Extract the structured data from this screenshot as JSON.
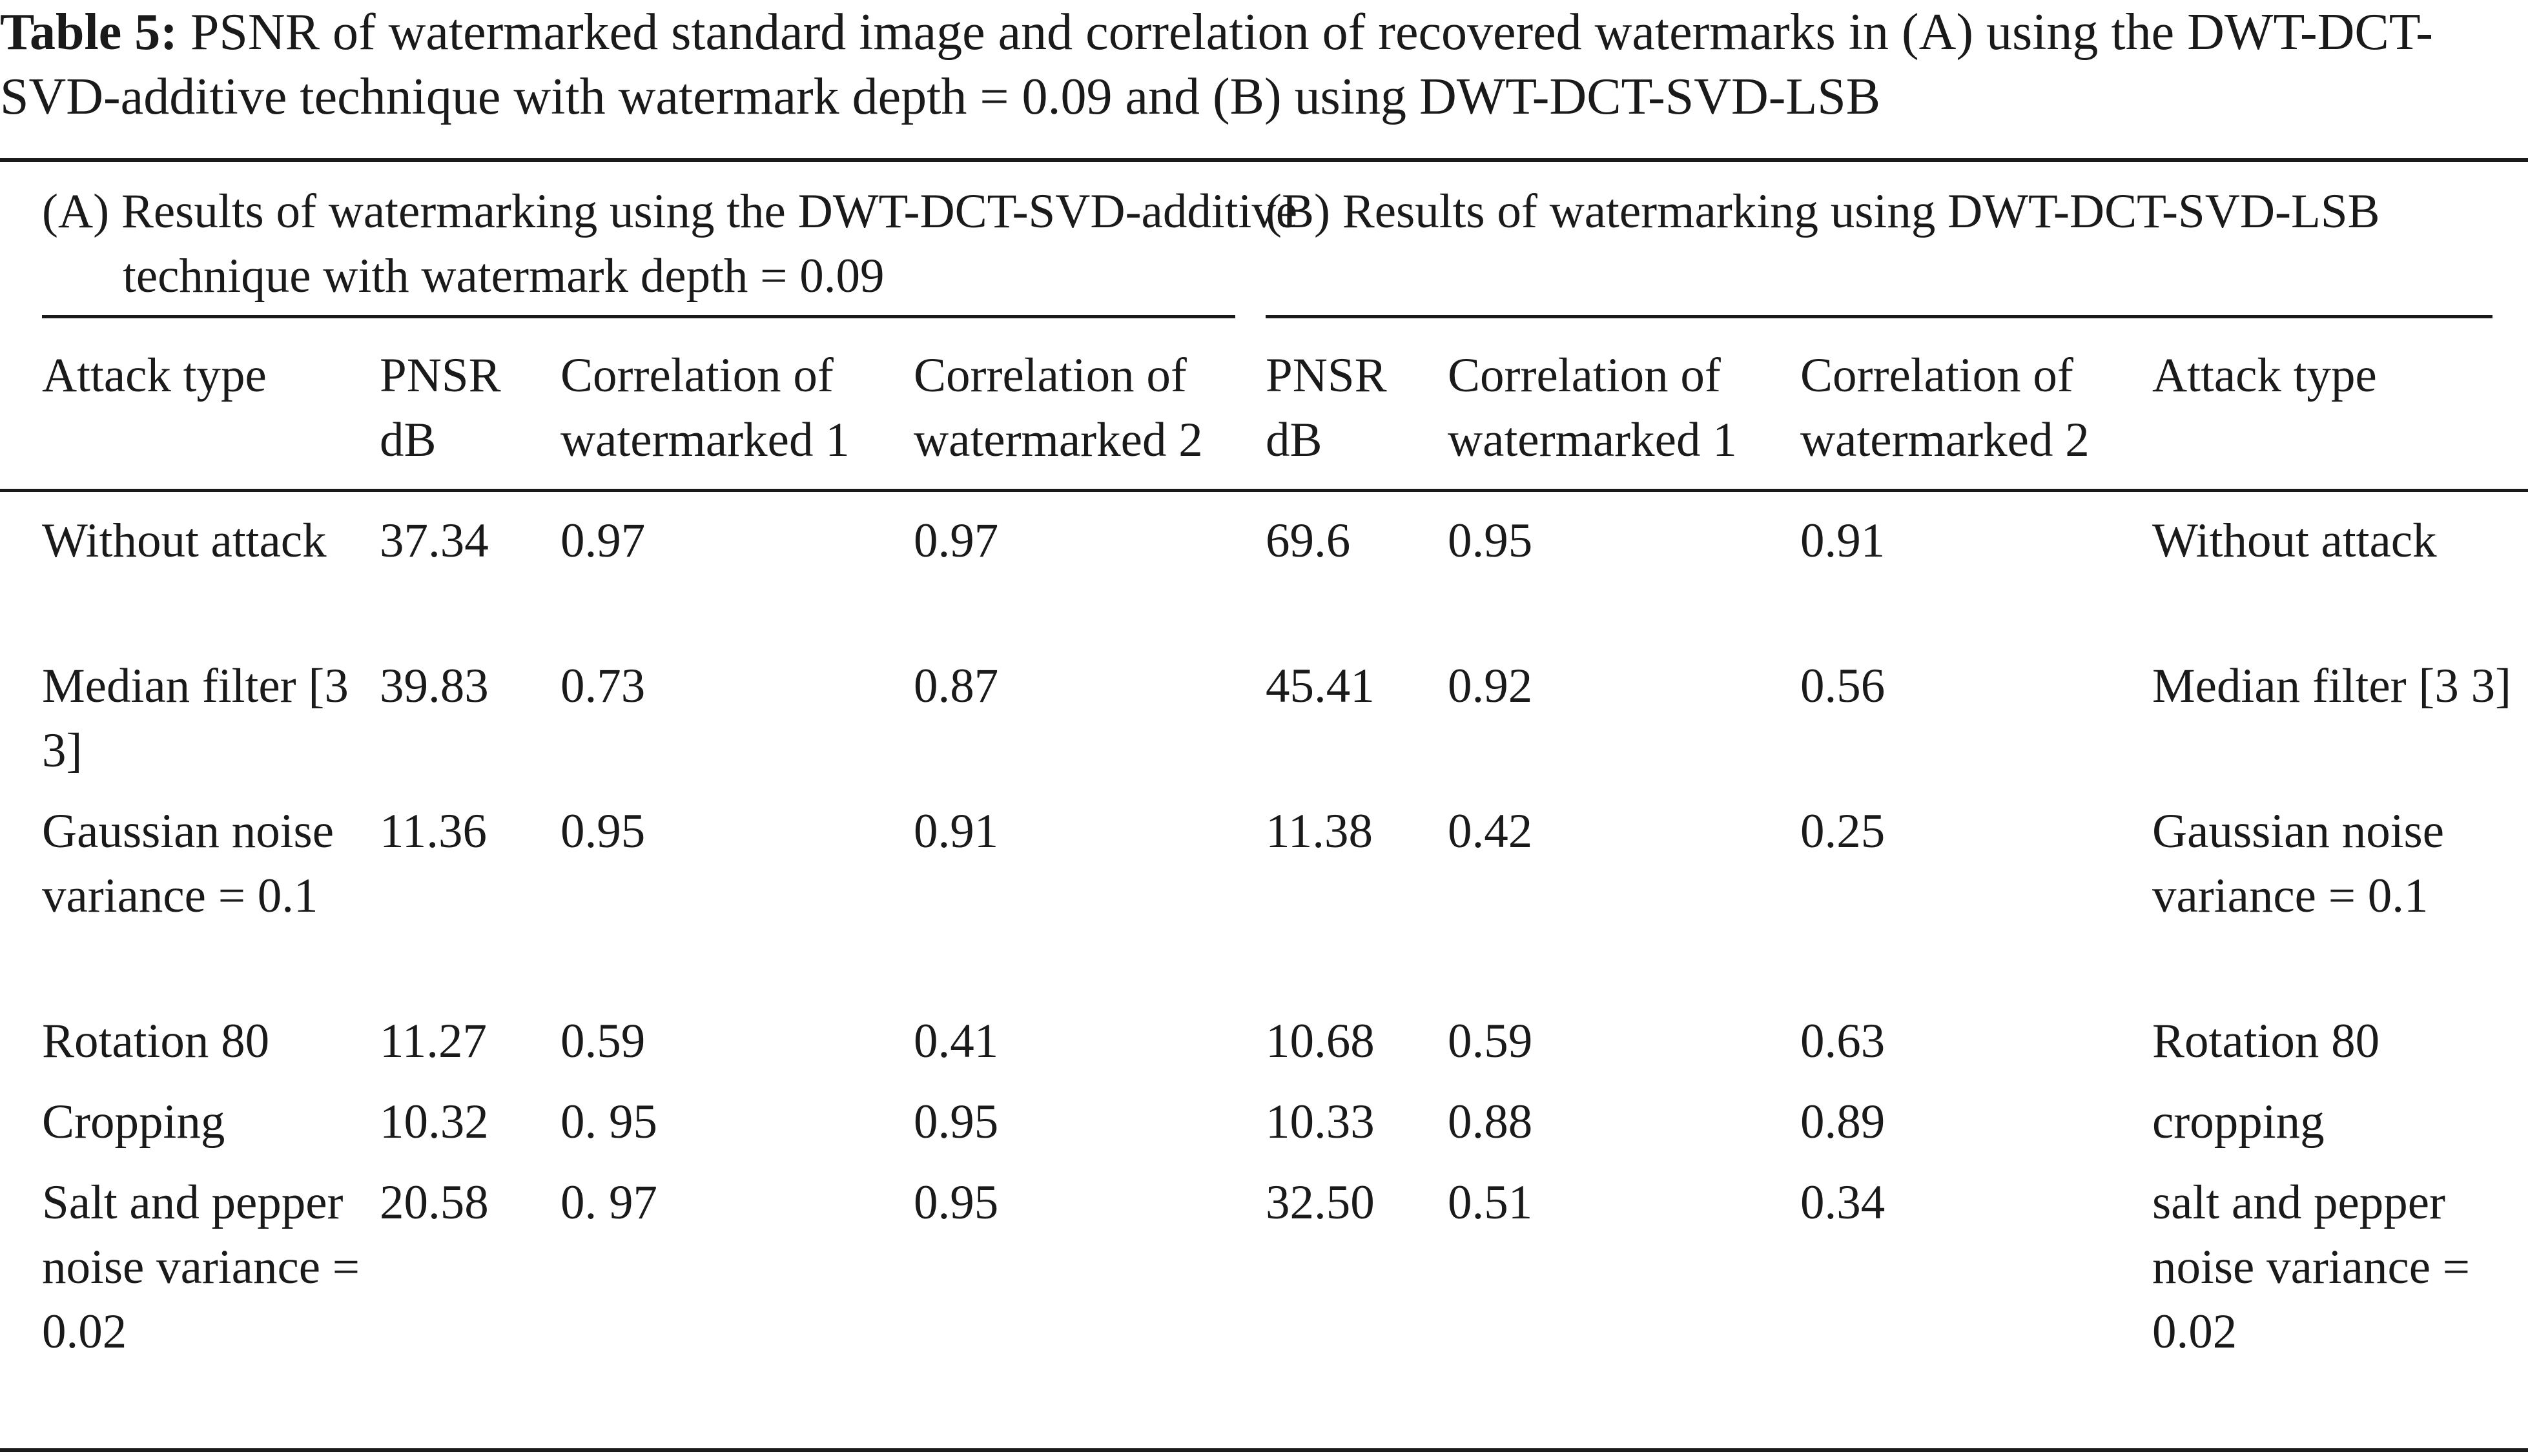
{
  "caption": {
    "label": "Table 5:",
    "text": "PSNR of watermarked standard image and correlation of recovered watermarks in (A) using the DWT-DCT-SVD-additive technique with watermark depth = 0.09 and (B) using DWT-DCT-SVD-LSB"
  },
  "groups": {
    "a": "(A) Results of watermarking using the DWT-DCT-SVD-additive technique with watermark depth = 0.09",
    "b": "(B) Results of watermarking using DWT-DCT-SVD-LSB"
  },
  "headers": [
    "Attack type",
    "PNSR dB",
    "Correlation of watermarked 1",
    "Correlation of watermarked 2",
    "PNSR dB",
    "Correlation of watermarked 1",
    "Correlation of watermarked 2",
    "Attack type"
  ],
  "rows": [
    [
      "Without attack",
      "37.34",
      "0.97",
      "0.97",
      "69.6",
      "0.95",
      "0.91",
      "Without attack"
    ],
    [
      "Median filter [3 3]",
      "39.83",
      "0.73",
      "0.87",
      "45.41",
      "0.92",
      "0.56",
      "Median filter [3 3]"
    ],
    [
      "Gaussian noise variance = 0.1",
      "11.36",
      "0.95",
      "0.91",
      "11.38",
      "0.42",
      "0.25",
      "Gaussian noise variance = 0.1"
    ],
    [
      "Rotation 80",
      "11.27",
      "0.59",
      "0.41",
      "10.68",
      "0.59",
      "0.63",
      "Rotation 80"
    ],
    [
      "Cropping",
      "10.32",
      "0. 95",
      "0.95",
      "10.33",
      "0.88",
      "0.89",
      "cropping"
    ],
    [
      "Salt and pepper noise variance = 0.02",
      "20.58",
      "0. 97",
      "0.95",
      "32.50",
      "0.51",
      "0.34",
      "salt and pepper noise variance = 0.02"
    ]
  ]
}
